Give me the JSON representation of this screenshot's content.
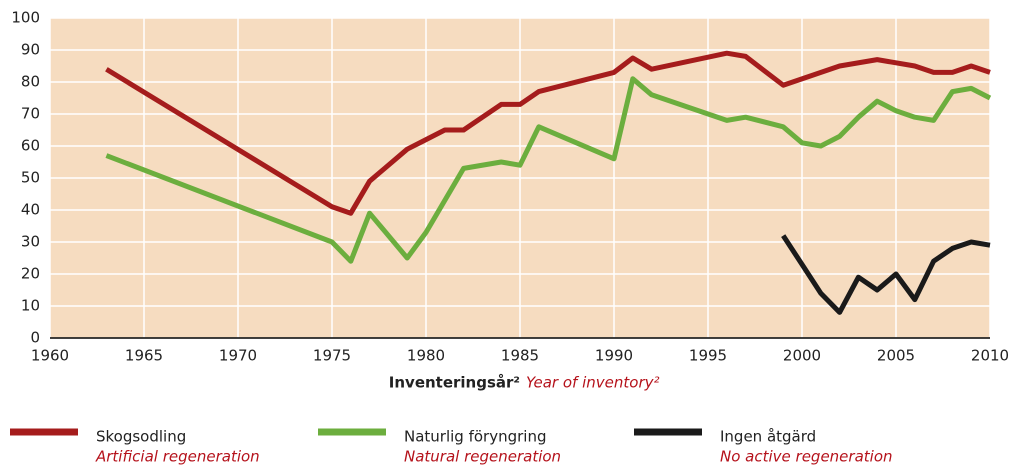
{
  "chart_data": {
    "type": "line",
    "x_label": "Inventeringsår²",
    "x_label_en": "Year of inventory²",
    "xlim": [
      1960,
      2010
    ],
    "xticks": [
      1960,
      1965,
      1970,
      1975,
      1980,
      1985,
      1990,
      1995,
      2000,
      2005,
      2010
    ],
    "ylim": [
      0,
      100
    ],
    "yticks": [
      0,
      10,
      20,
      30,
      40,
      50,
      60,
      70,
      80,
      90,
      100
    ],
    "grid": true,
    "legend": "bottom",
    "series": [
      {
        "name": "Skogsodling",
        "name_en": "Artificial regeneration",
        "color": "#a51c1c",
        "x": [
          1963,
          1975,
          1976,
          1977,
          1979,
          1980,
          1981,
          1982,
          1984,
          1985,
          1986,
          1990,
          1991,
          1992,
          1996,
          1997,
          1999,
          2002,
          2004,
          2006,
          2007,
          2008,
          2009,
          2010
        ],
        "values": [
          84,
          41,
          39,
          49,
          59,
          62,
          65,
          65,
          73,
          73,
          77,
          83,
          87.5,
          84,
          89,
          88,
          79,
          85,
          87,
          85,
          83,
          83,
          85,
          83
        ]
      },
      {
        "name": "Naturlig föryngring",
        "name_en": "Natural regeneration",
        "color": "#6cae3e",
        "x": [
          1963,
          1975,
          1976,
          1977,
          1979,
          1980,
          1982,
          1984,
          1985,
          1986,
          1990,
          1991,
          1992,
          1996,
          1997,
          1999,
          2000,
          2001,
          2002,
          2003,
          2004,
          2005,
          2006,
          2007,
          2008,
          2009,
          2010
        ],
        "values": [
          57,
          30,
          24,
          39,
          25,
          33,
          53,
          55,
          54,
          66,
          56,
          81,
          76,
          68,
          69,
          66,
          61,
          60,
          63,
          69,
          74,
          71,
          69,
          68,
          77,
          78,
          75
        ]
      },
      {
        "name": "Ingen åtgärd",
        "name_en": "No active regeneration",
        "color": "#1a1a1a",
        "x": [
          1999,
          2000,
          2001,
          2002,
          2003,
          2004,
          2005,
          2006,
          2007,
          2008,
          2009,
          2010
        ],
        "values": [
          32,
          23,
          14,
          8,
          19,
          15,
          20,
          12,
          24,
          28,
          30,
          29
        ]
      }
    ]
  }
}
